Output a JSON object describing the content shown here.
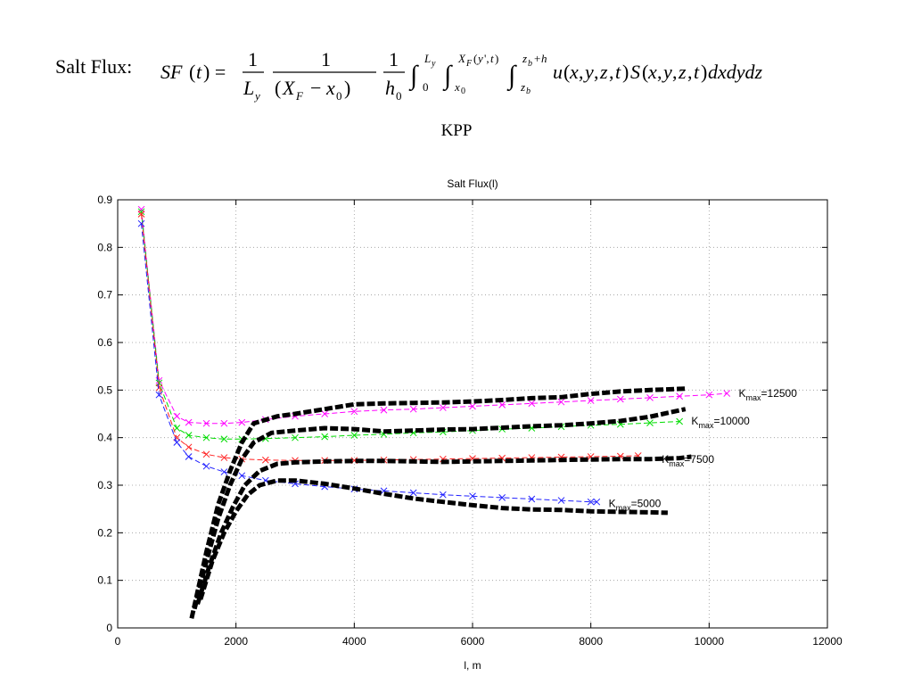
{
  "formula": {
    "label": "Salt Flux:",
    "expression": "SF(t) = 1/L_y · 1/(X_F − x_0) · 1/h_0 ∫_0^{L_y} ∫_{x_0}^{X_F(y',t)} ∫_{z_b}^{z_b+h} u(x,y,z,t)S(x,y,z,t)dxdydz"
  },
  "subtitle": "KPP",
  "chart_data": {
    "type": "line",
    "title": "Salt Flux(l)",
    "xlabel": "l, m",
    "ylabel": "",
    "xlim": [
      0,
      12000
    ],
    "ylim": [
      0,
      0.9
    ],
    "xticks": [
      0,
      2000,
      4000,
      6000,
      8000,
      10000,
      12000
    ],
    "yticks": [
      0,
      0.1,
      0.2,
      0.3,
      0.4,
      0.5,
      0.6,
      0.7,
      0.8,
      0.9
    ],
    "grid": true,
    "series": [
      {
        "color": "#ff00ff",
        "style": "dashed-x",
        "x": [
          400,
          700,
          1000,
          1200,
          1500,
          1800,
          2100,
          2500,
          3000,
          3500,
          4000,
          4500,
          5000,
          5500,
          6000,
          6500,
          7000,
          7500,
          8000,
          8500,
          9000,
          9500,
          10000,
          10300
        ],
        "y": [
          0.88,
          0.52,
          0.445,
          0.432,
          0.43,
          0.43,
          0.432,
          0.438,
          0.445,
          0.45,
          0.455,
          0.458,
          0.46,
          0.463,
          0.466,
          0.469,
          0.472,
          0.475,
          0.478,
          0.481,
          0.484,
          0.487,
          0.49,
          0.493
        ]
      },
      {
        "color": "#00dd00",
        "style": "dashed-x",
        "x": [
          400,
          700,
          1000,
          1200,
          1500,
          1800,
          2100,
          2500,
          3000,
          3500,
          4000,
          4500,
          5000,
          5500,
          6000,
          6500,
          7000,
          7500,
          8000,
          8500,
          9000,
          9500
        ],
        "y": [
          0.875,
          0.515,
          0.42,
          0.405,
          0.4,
          0.397,
          0.397,
          0.398,
          0.4,
          0.402,
          0.405,
          0.407,
          0.41,
          0.412,
          0.415,
          0.418,
          0.42,
          0.423,
          0.426,
          0.428,
          0.431,
          0.434
        ]
      },
      {
        "color": "#ff2020",
        "style": "dashed-x",
        "x": [
          400,
          700,
          1000,
          1200,
          1500,
          1800,
          2100,
          2500,
          3000,
          3500,
          4000,
          4500,
          5000,
          5500,
          6000,
          6500,
          7000,
          7500,
          8000,
          8500,
          8800
        ],
        "y": [
          0.87,
          0.505,
          0.4,
          0.38,
          0.365,
          0.358,
          0.355,
          0.353,
          0.352,
          0.352,
          0.352,
          0.353,
          0.354,
          0.355,
          0.356,
          0.357,
          0.358,
          0.359,
          0.36,
          0.361,
          0.362
        ]
      },
      {
        "color": "#2020ff",
        "style": "dashed-x",
        "x": [
          400,
          700,
          1000,
          1200,
          1500,
          1800,
          2100,
          2500,
          3000,
          3500,
          4000,
          4500,
          5000,
          5500,
          6000,
          6500,
          7000,
          7500,
          8000,
          8100
        ],
        "y": [
          0.85,
          0.49,
          0.39,
          0.36,
          0.34,
          0.328,
          0.32,
          0.31,
          0.303,
          0.297,
          0.292,
          0.288,
          0.284,
          0.28,
          0.277,
          0.274,
          0.271,
          0.268,
          0.265,
          0.265
        ]
      },
      {
        "color": "#000000",
        "style": "thick-dashed",
        "x": [
          1250,
          1500,
          1700,
          1900,
          2100,
          2300,
          2700,
          3000,
          3500,
          4000,
          4500,
          5000,
          5500,
          6000,
          6500,
          7000,
          7500,
          8000,
          8500,
          9000,
          9600
        ],
        "y": [
          0.02,
          0.16,
          0.26,
          0.33,
          0.39,
          0.43,
          0.445,
          0.45,
          0.46,
          0.47,
          0.472,
          0.473,
          0.474,
          0.476,
          0.479,
          0.483,
          0.485,
          0.492,
          0.497,
          0.5,
          0.503
        ]
      },
      {
        "color": "#000000",
        "style": "thick-dashed",
        "x": [
          1300,
          1500,
          1700,
          1900,
          2100,
          2300,
          2600,
          3000,
          3500,
          4000,
          4500,
          5000,
          5500,
          6000,
          6500,
          7000,
          7500,
          8000,
          8500,
          9000,
          9600
        ],
        "y": [
          0.04,
          0.14,
          0.23,
          0.3,
          0.355,
          0.39,
          0.41,
          0.415,
          0.42,
          0.418,
          0.413,
          0.415,
          0.417,
          0.418,
          0.421,
          0.424,
          0.426,
          0.43,
          0.435,
          0.444,
          0.46
        ]
      },
      {
        "color": "#000000",
        "style": "thick-dashed",
        "x": [
          1350,
          1550,
          1750,
          1950,
          2150,
          2400,
          2700,
          3000,
          3500,
          4000,
          4500,
          5000,
          5500,
          6000,
          6500,
          7000,
          7500,
          8000,
          8500,
          9000,
          9500,
          9700
        ],
        "y": [
          0.05,
          0.13,
          0.2,
          0.255,
          0.3,
          0.33,
          0.345,
          0.348,
          0.35,
          0.351,
          0.351,
          0.35,
          0.349,
          0.35,
          0.351,
          0.352,
          0.353,
          0.354,
          0.355,
          0.355,
          0.357,
          0.36
        ]
      },
      {
        "color": "#000000",
        "style": "thick-dashed",
        "x": [
          1400,
          1600,
          1800,
          2000,
          2200,
          2400,
          2700,
          3000,
          3500,
          4000,
          4500,
          5000,
          5500,
          6000,
          6500,
          7000,
          7500,
          8000,
          8500,
          9000,
          9300
        ],
        "y": [
          0.06,
          0.14,
          0.2,
          0.245,
          0.28,
          0.3,
          0.31,
          0.31,
          0.303,
          0.293,
          0.282,
          0.272,
          0.265,
          0.258,
          0.252,
          0.249,
          0.248,
          0.245,
          0.244,
          0.243,
          0.242
        ]
      }
    ],
    "annotations": [
      {
        "prefix": "K",
        "sub": "max",
        "suffix": "=12500",
        "x": 10500,
        "y": 0.493
      },
      {
        "prefix": "K",
        "sub": "max",
        "suffix": "=10000",
        "x": 9700,
        "y": 0.435
      },
      {
        "prefix": "K",
        "sub": "max",
        "suffix": "=7500",
        "x": 9200,
        "y": 0.354
      },
      {
        "prefix": "K",
        "sub": "max",
        "suffix": "=5000",
        "x": 8300,
        "y": 0.262
      }
    ]
  }
}
